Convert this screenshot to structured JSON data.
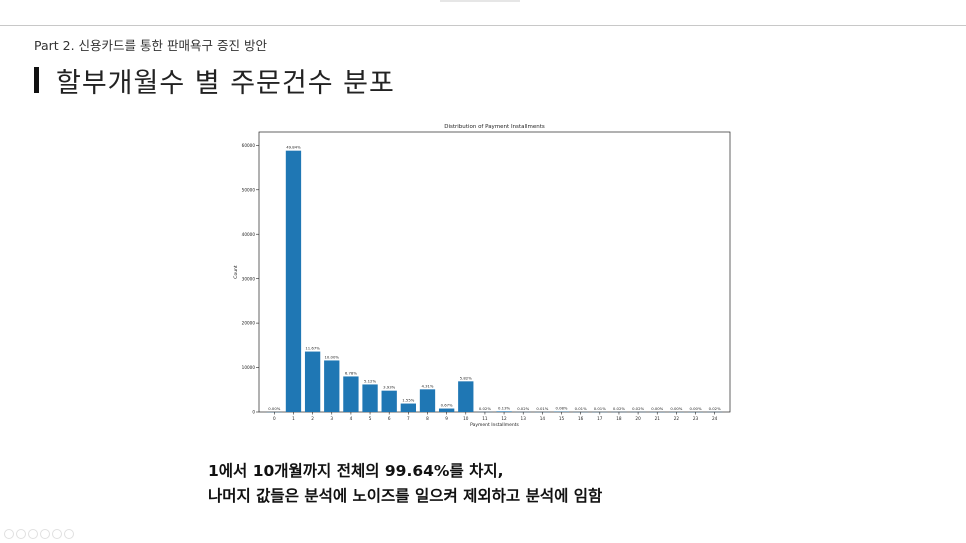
{
  "slide": {
    "part_label": "Part 2. 신용카드를 통한 판매욕구 증진 방안",
    "title": "할부개월수 별 주문건수 분포",
    "caption_line1": "1에서 10개월까지 전체의 99.64%를 차지,",
    "caption_line2": "나머지 값들은 분석에 노이즈를 일으켜 제외하고 분석에 임함"
  },
  "chart_data": {
    "type": "bar",
    "title": "Distribution of Payment Installments",
    "xlabel": "Payment Installments",
    "ylabel": "Count",
    "categories": [
      "0",
      "1",
      "2",
      "3",
      "4",
      "5",
      "6",
      "7",
      "8",
      "9",
      "10",
      "11",
      "12",
      "13",
      "14",
      "15",
      "16",
      "17",
      "18",
      "20",
      "21",
      "22",
      "23",
      "24"
    ],
    "values": [
      2,
      58800,
      13600,
      11600,
      8000,
      6200,
      4800,
      1900,
      5100,
      780,
      6900,
      25,
      140,
      18,
      10,
      75,
      7,
      9,
      20,
      20,
      3,
      2,
      2,
      20
    ],
    "percent_labels": [
      "0.00%",
      "49.84%",
      "11.67%",
      "10.00%",
      "6.78%",
      "5.12%",
      "3.93%",
      "1.55%",
      "4.31%",
      "0.67%",
      "5.82%",
      "0.02%",
      "0.13%",
      "0.02%",
      "0.01%",
      "0.08%",
      "0.01%",
      "0.01%",
      "0.02%",
      "0.02%",
      "0.00%",
      "0.00%",
      "0.00%",
      "0.02%"
    ],
    "ylim": [
      0,
      63000
    ],
    "yticks": [
      0,
      10000,
      20000,
      30000,
      40000,
      50000,
      60000
    ],
    "bar_color": "#1f77b4",
    "grid": false
  }
}
